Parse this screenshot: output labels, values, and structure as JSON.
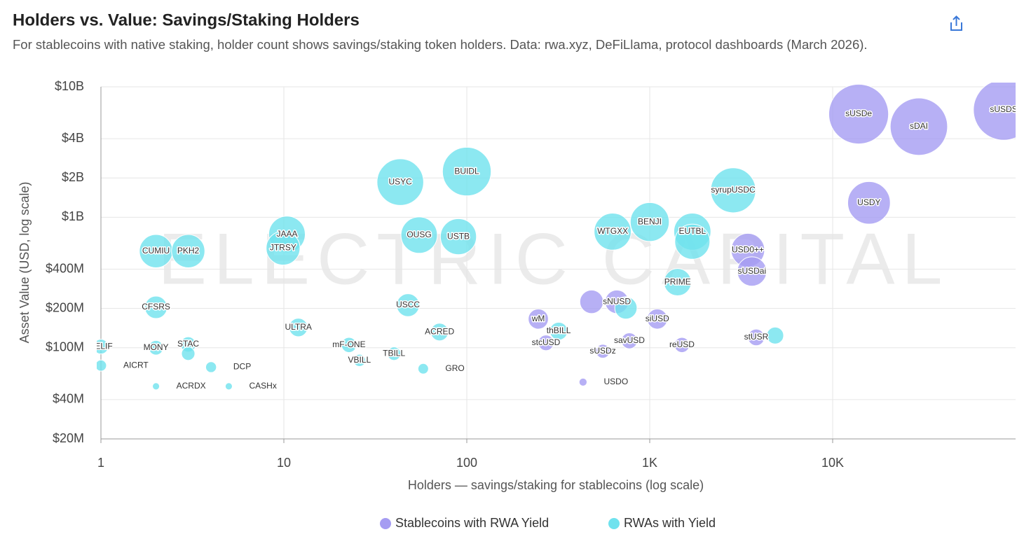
{
  "chart_data": {
    "type": "bubble",
    "title": "Holders vs. Value: Savings/Staking Holders",
    "subtitle": "For stablecoins with native staking, holder count shows savings/staking token holders. Data: rwa.xyz, DeFiLlama, protocol dashboards (March 2026).",
    "watermark": "ELECTRIC CAPITAL",
    "x_label": "Holders — savings/staking for stablecoins (log scale)",
    "y_label": "Asset Value (USD, log scale)",
    "xscale": "log",
    "yscale": "log",
    "grid": true,
    "legend": "bottom",
    "xlim": [
      1,
      100000
    ],
    "xticks": [
      1,
      10,
      100,
      {
        "value": 1000,
        "label": "1K"
      },
      {
        "value": 10000,
        "label": "10K"
      }
    ],
    "ylim": [
      20000000,
      10000000000
    ],
    "yticks": [
      {
        "value": 20000000,
        "label": "$20M"
      },
      {
        "value": 40000000,
        "label": "$40M"
      },
      {
        "value": 100000000,
        "label": "$100M"
      },
      {
        "value": 200000000,
        "label": "$200M"
      },
      {
        "value": 400000000,
        "label": "$400M"
      },
      {
        "value": 1000000000,
        "label": "$1B"
      },
      {
        "value": 2000000000,
        "label": "$2B"
      },
      {
        "value": 4000000000,
        "label": "$4B"
      },
      {
        "value": 10000000000,
        "label": "$10B"
      }
    ],
    "series": [
      {
        "name": "Stablecoins with RWA Yield",
        "color": "#a59cf2",
        "labels": [
          "sUSDe",
          "sDAI",
          "sUSDS",
          "USDY",
          "USD0++",
          "sUSDai",
          "sNUSD",
          null,
          "wM",
          "siUSD",
          "stcUSD",
          "savUSD",
          "sUSDz",
          "reUSD",
          "stUSR",
          "USDO"
        ],
        "x": [
          13870,
          29600,
          86100,
          15800,
          3440,
          3620,
          661,
          481,
          246,
          1100,
          271,
          774,
          554,
          1500,
          3820,
          432
        ],
        "values": [
          6180000000,
          4950000000,
          6650000000,
          1290000000,
          560000000,
          384000000,
          225000000,
          225000000,
          166000000,
          166000000,
          109000000,
          113000000,
          94000000,
          105000000,
          120000000,
          54500000
        ]
      },
      {
        "name": "RWAs with Yield",
        "color": "#6fe2ee",
        "labels": [
          "BUIDL",
          "USYC",
          "syrupUSDC",
          "BENJI",
          "WTGXX",
          "EUTBL",
          null,
          "OUSG",
          "USTB",
          "JAAA",
          "JTRSY",
          "CUMIU",
          "PKH2",
          "PRIME",
          "CFSRS",
          "USCC",
          "ULTRA",
          "ACRED",
          "thBILL",
          null,
          null,
          "BELIF",
          "MONY",
          "STAC",
          null,
          "mF-ONE",
          "TBILL",
          "VBILL",
          "DCP",
          "AICRT",
          "GRO",
          "ACRDX",
          "CASHx"
        ],
        "x": [
          100,
          43.3,
          2860,
          1000,
          627,
          1710,
          1710,
          54.9,
          90,
          10.4,
          9.9,
          2,
          3,
          1420,
          2,
          47.7,
          12,
          71,
          318,
          741,
          4850,
          1,
          2,
          3,
          3,
          22.7,
          40,
          25.9,
          4,
          1,
          57.8,
          2,
          5
        ],
        "values": [
          2240000000,
          1860000000,
          1610000000,
          920000000,
          776000000,
          776000000,
          650000000,
          730000000,
          710000000,
          740000000,
          580000000,
          550000000,
          550000000,
          318000000,
          204000000,
          212000000,
          143000000,
          132000000,
          134000000,
          202000000,
          124000000,
          102000000,
          100000000,
          106000000,
          90000000,
          105000000,
          90000000,
          80000000,
          71000000,
          73000000,
          69000000,
          50600000,
          50600000
        ]
      }
    ]
  }
}
